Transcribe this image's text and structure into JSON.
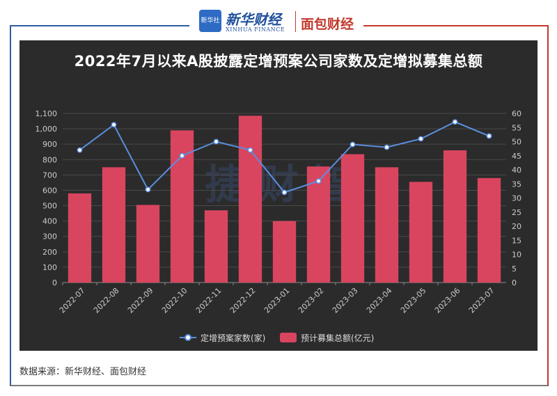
{
  "header": {
    "logo_text": "新华社",
    "brand_cn": "新华财经",
    "brand_en": "XINHUA FINANCE",
    "brand2": "面包财经"
  },
  "colors": {
    "bar": "#d9455f",
    "line": "#5b8fe0",
    "chart_bg": "#2b2b2b",
    "left_frame": "#2f5aa0",
    "right_frame": "#c0392b"
  },
  "chart_data": {
    "type": "bar",
    "title": "2022年7月以来A股披露定增预案公司家数及定增拟募集总额",
    "categories": [
      "2022-07",
      "2022-08",
      "2022-09",
      "2022-10",
      "2022-11",
      "2022-12",
      "2023-01",
      "2023-02",
      "2023-03",
      "2023-04",
      "2023-05",
      "2023-06",
      "2023-07"
    ],
    "series": [
      {
        "name": "预计募集总额(亿元)",
        "kind": "bar",
        "axis": "left",
        "values": [
          580,
          750,
          505,
          990,
          470,
          1085,
          400,
          755,
          835,
          750,
          655,
          860,
          680
        ]
      },
      {
        "name": "定增预案家数(家)",
        "kind": "line",
        "axis": "right",
        "values": [
          47,
          56,
          33,
          45,
          50,
          47,
          32,
          36,
          49,
          48,
          51,
          57,
          52
        ]
      }
    ],
    "y_left": {
      "min": 0,
      "max": 1100,
      "step": 100,
      "tick_labels": [
        "0",
        "100",
        "200",
        "300",
        "400",
        "500",
        "600",
        "700",
        "800",
        "900",
        "1,000",
        "1,100"
      ]
    },
    "y_right": {
      "min": 0,
      "max": 60,
      "step": 5,
      "tick_labels": [
        "0",
        "5",
        "10",
        "15",
        "20",
        "25",
        "30",
        "35",
        "40",
        "45",
        "50",
        "55",
        "60"
      ]
    },
    "grid": true,
    "legend_position": "bottom-center",
    "watermark": "捷财智"
  },
  "source": "数据来源：新华财经、面包财经"
}
